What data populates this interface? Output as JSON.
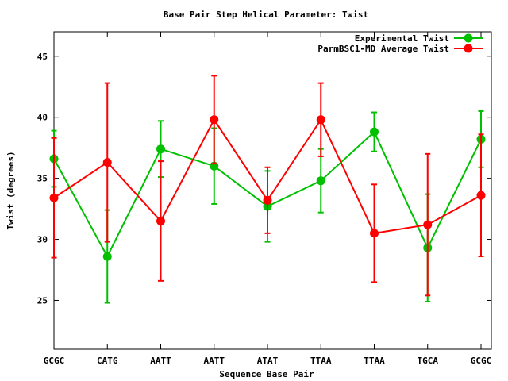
{
  "chart_data": {
    "type": "line",
    "title": "Base Pair Step Helical Parameter: Twist",
    "xlabel": "Sequence Base Pair",
    "ylabel": "Twist (degrees)",
    "categories": [
      "GCGC",
      "CATG",
      "AATT",
      "AATT",
      "ATAT",
      "TTAA",
      "TTAA",
      "TGCA",
      "GCGC"
    ],
    "ylim": [
      21,
      47
    ],
    "yticks": [
      25,
      30,
      35,
      40,
      45
    ],
    "grid": false,
    "legend_position": "top-right",
    "series": [
      {
        "name": "Experimental Twist",
        "color": "#00c000",
        "values": [
          36.6,
          28.6,
          37.4,
          36.0,
          32.7,
          34.8,
          38.8,
          29.3,
          38.2
        ],
        "errors": [
          2.3,
          3.8,
          2.3,
          3.1,
          2.9,
          2.6,
          1.6,
          4.4,
          2.3
        ]
      },
      {
        "name": "ParmBSC1-MD Average Twist",
        "color": "#ff0000",
        "values": [
          33.4,
          36.3,
          31.5,
          39.8,
          33.2,
          39.8,
          30.5,
          31.2,
          33.6
        ],
        "errors": [
          4.9,
          6.5,
          4.9,
          3.6,
          2.7,
          3.0,
          4.0,
          5.8,
          5.0
        ]
      }
    ]
  }
}
